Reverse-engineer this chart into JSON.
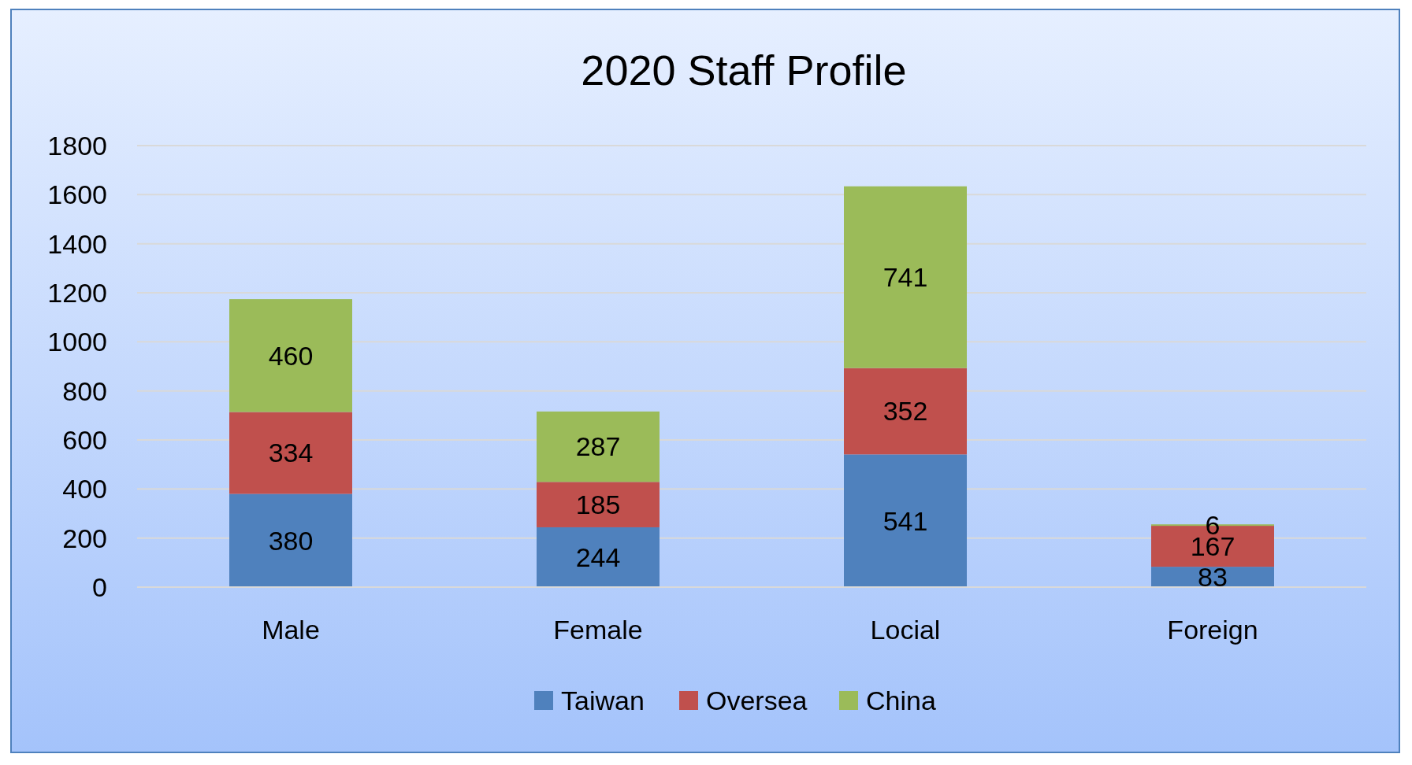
{
  "chart_data": {
    "type": "bar",
    "title": "2020 Staff Profile",
    "categories": [
      "Male",
      "Female",
      "Locial",
      "Foreign"
    ],
    "stacked": true,
    "series": [
      {
        "name": "Taiwan",
        "color": "#4f81bd",
        "values": [
          380,
          244,
          541,
          83
        ]
      },
      {
        "name": "Oversea",
        "color": "#c0504d",
        "values": [
          334,
          185,
          352,
          167
        ]
      },
      {
        "name": "China",
        "color": "#9bbb59",
        "values": [
          460,
          287,
          741,
          6
        ]
      }
    ],
    "ylim": [
      0,
      1800
    ],
    "yticks": [
      0,
      200,
      400,
      600,
      800,
      1000,
      1200,
      1400,
      1600,
      1800
    ],
    "grid": "y",
    "legend": "bottom",
    "data_labels": true
  }
}
